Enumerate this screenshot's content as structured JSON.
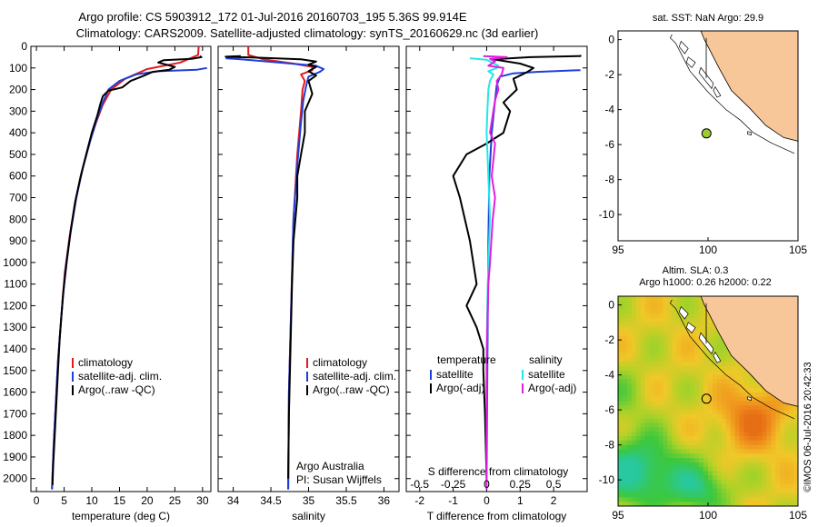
{
  "title_line1": "Argo profile: CS 5903912_172 01-Jul-2016 20160703_195 5.36S 99.914E",
  "title_line2": "Climatology: CARS2009. Satellite-adjusted climatology: synTS_20160629.nc (3d earlier)",
  "colors": {
    "climatology": "#e41a1c",
    "satellite": "#1f3fd6",
    "argo": "#000000",
    "cyan": "#26e6e6",
    "magenta": "#e01ee0",
    "land": "#f7c79a"
  },
  "chart_data": [
    {
      "type": "line",
      "name": "temperature-profile",
      "xlabel": "temperature (deg C)",
      "xlim": [
        -1,
        31.5
      ],
      "ylim": [
        2060,
        0
      ],
      "xticks": [
        0,
        5,
        10,
        15,
        20,
        25,
        30
      ],
      "yticks": [
        0,
        100,
        200,
        300,
        400,
        500,
        600,
        700,
        800,
        900,
        1000,
        1100,
        1200,
        1300,
        1400,
        1500,
        1600,
        1700,
        1800,
        1900,
        2000
      ],
      "legend": [
        "climatology",
        "satellite-adj. clim.",
        "Argo(..raw -QC)"
      ],
      "series": [
        {
          "name": "climatology",
          "color": "#e41a1c",
          "points": [
            [
              29.3,
              0
            ],
            [
              29.2,
              40
            ],
            [
              26,
              75
            ],
            [
              20,
              105
            ],
            [
              16,
              150
            ],
            [
              13.5,
              200
            ],
            [
              12,
              270
            ],
            [
              10.8,
              350
            ],
            [
              9.5,
              450
            ],
            [
              8.2,
              580
            ],
            [
              7,
              720
            ],
            [
              6,
              880
            ],
            [
              5.1,
              1050
            ],
            [
              4.5,
              1250
            ],
            [
              3.9,
              1450
            ],
            [
              3.5,
              1650
            ],
            [
              3.1,
              1850
            ],
            [
              2.8,
              2050
            ]
          ]
        },
        {
          "name": "satellite-adj. clim.",
          "color": "#1f3fd6",
          "points": [
            [
              30.8,
              100
            ],
            [
              29,
              108
            ],
            [
              22,
              115
            ],
            [
              18,
              130
            ],
            [
              15,
              160
            ],
            [
              13,
              200
            ],
            [
              12,
              260
            ],
            [
              11,
              330
            ],
            [
              9.8,
              430
            ],
            [
              8.4,
              560
            ],
            [
              7.2,
              700
            ],
            [
              6.1,
              870
            ],
            [
              5.2,
              1040
            ],
            [
              4.5,
              1250
            ],
            [
              3.9,
              1450
            ],
            [
              3.5,
              1650
            ],
            [
              3.1,
              1850
            ],
            [
              2.8,
              2050
            ]
          ]
        },
        {
          "name": "Argo(..raw -QC)",
          "color": "#000000",
          "points": [
            [
              29.5,
              45
            ],
            [
              29.8,
              50
            ],
            [
              28,
              58
            ],
            [
              23,
              64
            ],
            [
              22,
              75
            ],
            [
              25,
              95
            ],
            [
              24,
              108
            ],
            [
              21,
              118
            ],
            [
              19,
              140
            ],
            [
              17,
              160
            ],
            [
              15.5,
              190
            ],
            [
              13,
              205
            ],
            [
              12,
              230
            ],
            [
              11.5,
              270
            ],
            [
              11,
              320
            ],
            [
              10,
              400
            ],
            [
              9,
              500
            ],
            [
              8,
              600
            ],
            [
              7,
              720
            ],
            [
              6.2,
              850
            ],
            [
              5.5,
              990
            ],
            [
              4.8,
              1150
            ],
            [
              4.2,
              1350
            ],
            [
              3.8,
              1550
            ],
            [
              3.4,
              1750
            ],
            [
              3,
              1950
            ],
            [
              2.9,
              2030
            ]
          ]
        }
      ]
    },
    {
      "type": "line",
      "name": "salinity-profile",
      "xlabel": "salinity",
      "xlim": [
        33.8,
        36.2
      ],
      "ylim": [
        2060,
        0
      ],
      "xticks": [
        34,
        34.5,
        35,
        35.5,
        36
      ],
      "legend": [
        "climatology",
        "satellite-adj. clim.",
        "Argo(..raw -QC)"
      ],
      "annotations": [
        "Argo Australia",
        "PI: Susan Wijffels"
      ],
      "series": [
        {
          "name": "climatology",
          "color": "#e41a1c",
          "points": [
            [
              34.2,
              0
            ],
            [
              34.2,
              40
            ],
            [
              34.4,
              60
            ],
            [
              34.8,
              80
            ],
            [
              35.05,
              95
            ],
            [
              35.05,
              110
            ],
            [
              34.9,
              130
            ],
            [
              34.95,
              160
            ],
            [
              34.92,
              200
            ],
            [
              34.9,
              300
            ],
            [
              34.85,
              500
            ],
            [
              34.8,
              800
            ],
            [
              34.77,
              1200
            ],
            [
              34.74,
              1600
            ],
            [
              34.73,
              2050
            ]
          ]
        },
        {
          "name": "satellite-adj. clim.",
          "color": "#1f3fd6",
          "points": [
            [
              33.9,
              55
            ],
            [
              34.1,
              60
            ],
            [
              34.6,
              75
            ],
            [
              35.1,
              90
            ],
            [
              35.2,
              105
            ],
            [
              35.15,
              118
            ],
            [
              35.0,
              140
            ],
            [
              34.97,
              180
            ],
            [
              34.93,
              250
            ],
            [
              34.9,
              350
            ],
            [
              34.85,
              550
            ],
            [
              34.8,
              800
            ],
            [
              34.77,
              1200
            ],
            [
              34.74,
              1600
            ],
            [
              34.73,
              2050
            ]
          ]
        },
        {
          "name": "Argo(..raw -QC)",
          "color": "#000000",
          "points": [
            [
              34.1,
              45
            ],
            [
              33.9,
              48
            ],
            [
              34.3,
              52
            ],
            [
              34.9,
              60
            ],
            [
              35.1,
              70
            ],
            [
              35.0,
              85
            ],
            [
              35.1,
              95
            ],
            [
              35.0,
              115
            ],
            [
              35.1,
              135
            ],
            [
              35.0,
              160
            ],
            [
              35.05,
              220
            ],
            [
              34.95,
              300
            ],
            [
              34.95,
              400
            ],
            [
              34.9,
              500
            ],
            [
              34.85,
              600
            ],
            [
              34.85,
              700
            ],
            [
              34.8,
              900
            ],
            [
              34.78,
              1100
            ],
            [
              34.76,
              1400
            ],
            [
              34.74,
              1700
            ],
            [
              34.73,
              2000
            ]
          ]
        }
      ]
    },
    {
      "type": "line",
      "name": "difference-profile",
      "xlabel": "T difference from climatology",
      "xlabel_top": "S difference from climatology",
      "xlim": [
        -2.4,
        3
      ],
      "ylim": [
        2060,
        0
      ],
      "xticks": [
        -2,
        -1,
        0,
        1,
        2
      ],
      "xticks_top": [
        -0.5,
        -0.25,
        0,
        0.25,
        0.5
      ],
      "legend_titles": [
        "temperature",
        "salinity"
      ],
      "legend": [
        "satellite",
        "Argo(-adj)",
        "satellite",
        "Argo(-adj)"
      ],
      "series": [
        {
          "name": "temperature-satellite",
          "color": "#1f3fd6",
          "points": [
            [
              2.8,
              110
            ],
            [
              1.5,
              118
            ],
            [
              0.8,
              125
            ],
            [
              0.4,
              140
            ],
            [
              0.3,
              180
            ],
            [
              0.25,
              250
            ],
            [
              0.15,
              400
            ],
            [
              0.08,
              600
            ],
            [
              0.05,
              900
            ],
            [
              0.02,
              1500
            ],
            [
              0,
              2050
            ]
          ]
        },
        {
          "name": "temperature-argo",
          "color": "#000000",
          "points": [
            [
              2.8,
              40
            ],
            [
              2.8,
              45
            ],
            [
              1.3,
              50
            ],
            [
              0.2,
              60
            ],
            [
              1,
              80
            ],
            [
              1.4,
              100
            ],
            [
              1.2,
              120
            ],
            [
              0.8,
              150
            ],
            [
              0.9,
              200
            ],
            [
              0.5,
              260
            ],
            [
              0.7,
              300
            ],
            [
              0.5,
              400
            ],
            [
              0,
              450
            ],
            [
              -0.6,
              500
            ],
            [
              -1,
              600
            ],
            [
              -0.8,
              700
            ],
            [
              -0.5,
              900
            ],
            [
              -0.3,
              1100
            ],
            [
              -0.6,
              1200
            ],
            [
              -0.3,
              1300
            ],
            [
              -0.1,
              1400
            ],
            [
              -0.1,
              1500
            ],
            [
              -0.05,
              1700
            ],
            [
              0,
              2000
            ]
          ]
        },
        {
          "name": "salinity-satellite",
          "color": "#26e6e6",
          "points": [
            [
              -0.5,
              55
            ],
            [
              0,
              62
            ],
            [
              0.15,
              75
            ],
            [
              0.35,
              90
            ],
            [
              0.3,
              100
            ],
            [
              0.05,
              115
            ],
            [
              0.2,
              130
            ],
            [
              0.1,
              160
            ],
            [
              0.05,
              200
            ],
            [
              0.02,
              300
            ],
            [
              0,
              400
            ],
            [
              0.05,
              600
            ],
            [
              0.1,
              800
            ],
            [
              0.05,
              1000
            ],
            [
              0.02,
              1200
            ],
            [
              0,
              1400
            ],
            [
              0,
              2050
            ]
          ]
        },
        {
          "name": "salinity-argo",
          "color": "#e01ee0",
          "points": [
            [
              -0.1,
              45
            ],
            [
              0.6,
              50
            ],
            [
              0.1,
              58
            ],
            [
              0.25,
              70
            ],
            [
              0.05,
              90
            ],
            [
              0.5,
              100
            ],
            [
              0.45,
              130
            ],
            [
              0.3,
              160
            ],
            [
              0.35,
              200
            ],
            [
              0.25,
              250
            ],
            [
              0.2,
              300
            ],
            [
              0.1,
              400
            ],
            [
              0.25,
              450
            ],
            [
              0.15,
              600
            ],
            [
              0.25,
              700
            ],
            [
              0.18,
              800
            ],
            [
              0.1,
              1000
            ],
            [
              0.05,
              1100
            ],
            [
              0.02,
              1300
            ],
            [
              0,
              1500
            ],
            [
              0,
              2050
            ]
          ]
        }
      ]
    },
    {
      "type": "scatter",
      "name": "sst-map",
      "title": "sat. SST: NaN Argo: 29.9",
      "xlim": [
        95,
        105
      ],
      "ylim": [
        -11.5,
        0.5
      ],
      "xticks": [
        95,
        100,
        105
      ],
      "yticks": [
        0,
        -2,
        -4,
        -6,
        -8,
        -10
      ],
      "point": {
        "x": 99.914,
        "y": -5.36,
        "fill": "#9acd32"
      }
    },
    {
      "type": "heatmap",
      "name": "sla-map",
      "title_line1": "Altim. SLA: 0.3",
      "title_line2": "Argo h1000: 0.26 h2000: 0.22",
      "xlim": [
        95,
        105
      ],
      "ylim": [
        -11.5,
        0.5
      ],
      "xticks": [
        95,
        100,
        105
      ],
      "yticks": [
        0,
        -2,
        -4,
        -6,
        -8,
        -10
      ],
      "point": {
        "x": 99.914,
        "y": -5.36,
        "fill": "none"
      }
    }
  ],
  "credit": "©IMOS 06-Jul-2016 20:42:33"
}
